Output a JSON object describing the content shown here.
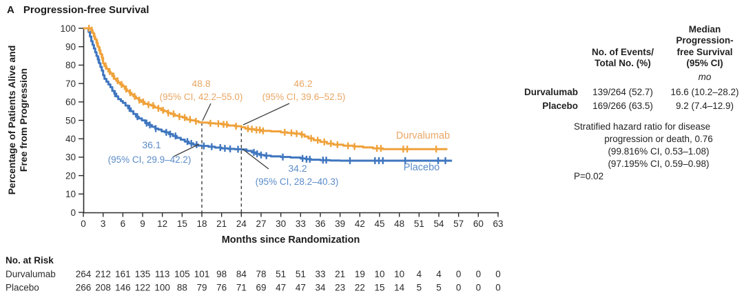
{
  "panel_label": "A",
  "title": "Progression-free Survival",
  "colors": {
    "durvalumab_curve": "#EFA23B",
    "durvalumab_label": "#E9A765",
    "placebo_curve": "#3F76BF",
    "placebo_label": "#5B8CC9",
    "reference_line": "#3C3C3C",
    "axis_text": "#2B2B2B"
  },
  "chart_data": {
    "type": "line",
    "subtype": "kaplan-meier-step",
    "xlabel": "Months since Randomization",
    "ylabel_lines": [
      "Percentage of Patients Alive and",
      "Free from Progression"
    ],
    "xlim": [
      0,
      63
    ],
    "ylim": [
      0,
      100
    ],
    "xticks": [
      0,
      3,
      6,
      9,
      12,
      15,
      18,
      21,
      24,
      27,
      30,
      33,
      36,
      39,
      42,
      45,
      48,
      51,
      54,
      57,
      60,
      63
    ],
    "yticks": [
      0,
      10,
      20,
      30,
      40,
      50,
      60,
      70,
      80,
      90,
      100
    ],
    "reference_lines_months": [
      18,
      24
    ],
    "series": [
      {
        "name": "Durvalumab",
        "steps": [
          [
            0,
            100
          ],
          [
            1.2,
            99
          ],
          [
            1.4,
            97.5
          ],
          [
            1.6,
            95.5
          ],
          [
            1.8,
            94
          ],
          [
            2,
            92
          ],
          [
            2.2,
            90
          ],
          [
            2.4,
            88
          ],
          [
            2.6,
            86
          ],
          [
            2.8,
            84
          ],
          [
            3,
            81
          ],
          [
            3.2,
            79.5
          ],
          [
            3.5,
            78
          ],
          [
            3.8,
            76.5
          ],
          [
            4.1,
            75.5
          ],
          [
            4.4,
            74
          ],
          [
            4.7,
            72.5
          ],
          [
            5,
            71.5
          ],
          [
            5.3,
            70.5
          ],
          [
            5.6,
            69.5
          ],
          [
            6,
            68.5
          ],
          [
            6.3,
            67
          ],
          [
            6.6,
            66
          ],
          [
            7,
            65
          ],
          [
            7.3,
            64
          ],
          [
            7.6,
            63
          ],
          [
            8,
            62
          ],
          [
            8.4,
            61
          ],
          [
            8.8,
            60
          ],
          [
            9.3,
            59
          ],
          [
            9.8,
            58.5
          ],
          [
            10.3,
            58
          ],
          [
            10.8,
            57
          ],
          [
            11.3,
            56.5
          ],
          [
            11.8,
            55.5
          ],
          [
            12.3,
            55
          ],
          [
            12.8,
            54
          ],
          [
            13.3,
            53.5
          ],
          [
            13.9,
            52.5
          ],
          [
            14.5,
            52
          ],
          [
            15.1,
            51.5
          ],
          [
            15.7,
            50.5
          ],
          [
            16.3,
            50
          ],
          [
            17,
            49.5
          ],
          [
            17.5,
            49
          ],
          [
            18,
            48.8
          ],
          [
            19,
            48.4
          ],
          [
            20,
            48.2
          ],
          [
            21,
            47.8
          ],
          [
            22,
            47.2
          ],
          [
            23,
            46.8
          ],
          [
            24,
            46.2
          ],
          [
            24.6,
            45.5
          ],
          [
            25.2,
            45.2
          ],
          [
            26,
            44.8
          ],
          [
            27,
            44.3
          ],
          [
            28.5,
            44
          ],
          [
            30,
            43.5
          ],
          [
            31,
            43.2
          ],
          [
            32,
            42.8
          ],
          [
            33,
            42.3
          ],
          [
            33.6,
            41.2
          ],
          [
            34.2,
            40.2
          ],
          [
            35,
            39.2
          ],
          [
            36,
            38.3
          ],
          [
            37,
            37.4
          ],
          [
            38,
            36.8
          ],
          [
            39.5,
            36.2
          ],
          [
            41,
            35.8
          ],
          [
            42.5,
            35.3
          ],
          [
            44,
            34.8
          ],
          [
            45.5,
            34.4
          ],
          [
            55.3,
            34.4
          ]
        ],
        "censor_months": [
          0.85,
          1.3,
          1.7,
          2.1,
          2.5,
          2.9,
          3.4,
          4,
          4.6,
          5.2,
          5.8,
          6.5,
          7.1,
          7.8,
          8.5,
          9.1,
          9.9,
          10.6,
          11.4,
          12.1,
          12.9,
          13.7,
          14.6,
          15.4,
          16.2,
          17.1,
          19.3,
          20.5,
          21.3,
          21.8,
          23.2,
          25,
          25.6,
          26.3,
          26.8,
          27.3,
          30.6,
          31.6,
          32.4,
          33.2,
          34.6,
          35.6,
          36.6,
          37.6,
          38.6,
          40.2,
          41.2,
          44.6,
          45.2,
          48.6,
          49.2,
          53.6
        ]
      },
      {
        "name": "Placebo",
        "steps": [
          [
            0,
            100
          ],
          [
            0.8,
            98
          ],
          [
            1,
            95.5
          ],
          [
            1.2,
            93
          ],
          [
            1.4,
            91
          ],
          [
            1.6,
            89
          ],
          [
            1.8,
            87
          ],
          [
            2,
            85
          ],
          [
            2.2,
            83
          ],
          [
            2.4,
            81
          ],
          [
            2.6,
            79
          ],
          [
            2.8,
            77
          ],
          [
            3,
            74.5
          ],
          [
            3.2,
            72.5
          ],
          [
            3.5,
            71
          ],
          [
            3.8,
            69.5
          ],
          [
            4.1,
            68
          ],
          [
            4.4,
            66
          ],
          [
            4.7,
            64.5
          ],
          [
            5,
            63
          ],
          [
            5.3,
            61.5
          ],
          [
            5.7,
            60.5
          ],
          [
            6,
            59.5
          ],
          [
            6.4,
            58
          ],
          [
            6.8,
            56.5
          ],
          [
            7.2,
            55
          ],
          [
            7.6,
            53.5
          ],
          [
            8,
            52
          ],
          [
            8.4,
            51
          ],
          [
            8.9,
            50
          ],
          [
            9.4,
            48.5
          ],
          [
            9.9,
            47.5
          ],
          [
            10.4,
            46.5
          ],
          [
            10.9,
            45.5
          ],
          [
            11.4,
            45
          ],
          [
            11.9,
            44
          ],
          [
            12.4,
            43.5
          ],
          [
            13,
            42.5
          ],
          [
            13.6,
            41.5
          ],
          [
            14.2,
            40.5
          ],
          [
            14.8,
            39.5
          ],
          [
            15.4,
            38.5
          ],
          [
            16,
            37.5
          ],
          [
            16.7,
            36.8
          ],
          [
            17.4,
            36.3
          ],
          [
            18,
            36.1
          ],
          [
            19,
            35.7
          ],
          [
            20,
            35.2
          ],
          [
            21,
            34.8
          ],
          [
            22,
            34.5
          ],
          [
            23,
            34.3
          ],
          [
            24,
            34.2
          ],
          [
            24.8,
            33.4
          ],
          [
            25.6,
            32.6
          ],
          [
            26.2,
            31.8
          ],
          [
            26.8,
            31.2
          ],
          [
            27.5,
            30.8
          ],
          [
            28.5,
            30.4
          ],
          [
            30,
            30.1
          ],
          [
            31.5,
            29.8
          ],
          [
            33,
            29.3
          ],
          [
            33.8,
            28.9
          ],
          [
            34.6,
            28.6
          ],
          [
            36,
            28.4
          ],
          [
            37.5,
            28.2
          ],
          [
            39,
            28.1
          ],
          [
            56,
            28.1
          ]
        ],
        "censor_months": [
          2.3,
          4.8,
          7,
          8.2,
          9.6,
          10.1,
          11,
          12.6,
          13.2,
          14,
          15.8,
          16.4,
          17.2,
          18.3,
          19.5,
          20.8,
          21.5,
          22.3,
          23.5,
          25.9,
          26.4,
          27,
          27.8,
          30.3,
          33.3,
          33.9,
          34.4,
          36.4,
          36.9,
          40.5,
          44.3,
          44.9,
          45.5,
          48.9,
          53.9,
          55
        ]
      }
    ],
    "annotations": [
      {
        "series": "Durvalumab",
        "month": 18,
        "value": "48.8",
        "ci": "(95% CI, 42.2–55.0)"
      },
      {
        "series": "Durvalumab",
        "month": 24,
        "value": "46.2",
        "ci": "(95% CI, 39.6–52.5)"
      },
      {
        "series": "Placebo",
        "month": 18,
        "value": "36.1",
        "ci": "(95% CI, 29.9–42.2)"
      },
      {
        "series": "Placebo",
        "month": 24,
        "value": "34.2",
        "ci": "(95% CI, 28.2–40.3)"
      }
    ]
  },
  "risk_table": {
    "header": "No. at Risk",
    "rows": [
      {
        "label": "Durvalumab",
        "values": [
          264,
          212,
          161,
          135,
          113,
          105,
          101,
          98,
          84,
          78,
          51,
          51,
          33,
          21,
          19,
          10,
          10,
          4,
          4,
          0,
          0,
          0
        ]
      },
      {
        "label": "Placebo",
        "values": [
          266,
          208,
          146,
          122,
          100,
          88,
          79,
          76,
          71,
          69,
          47,
          47,
          34,
          23,
          22,
          15,
          14,
          5,
          5,
          0,
          0,
          0
        ]
      }
    ]
  },
  "summary_table": {
    "col1_lines": [
      "No. of Events/",
      "Total No. (%)"
    ],
    "col2_lines": [
      "Median",
      "Progression-",
      "free Survival",
      "(95% CI)"
    ],
    "unit": "mo",
    "rows": [
      {
        "label": "Durvalumab",
        "events": "139/264 (52.7)",
        "median": "16.6 (10.2–28.2)"
      },
      {
        "label": "Placebo",
        "events": "169/266 (63.5)",
        "median": "9.2 (7.4–12.9)"
      }
    ]
  },
  "hazard_note": {
    "line1": "Stratified hazard ratio for disease",
    "line2": "progression or death, 0.76",
    "line3": "(99.816% CI, 0.53–1.08)",
    "line4": "(97.195% CI, 0.59–0.98)",
    "line5": "P=0.02"
  }
}
